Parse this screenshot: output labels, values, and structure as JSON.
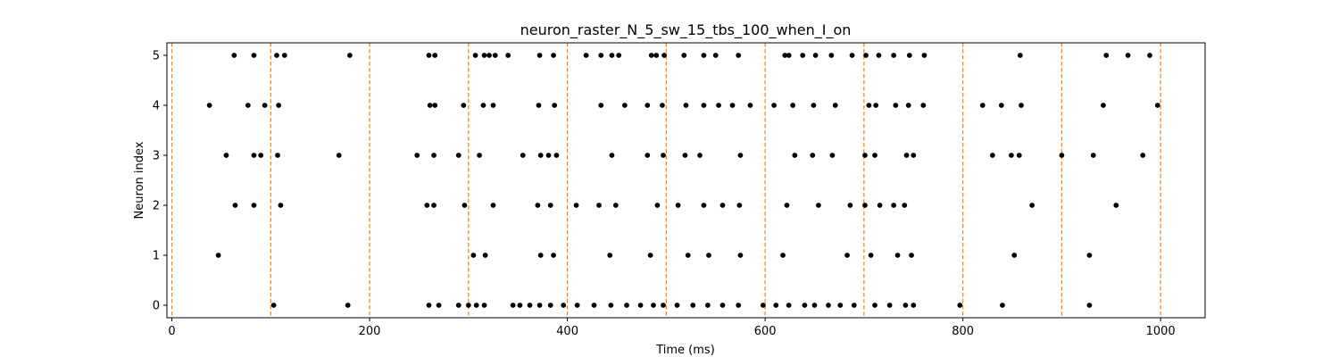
{
  "chart_data": {
    "type": "scatter",
    "title": "neuron_raster_N_5_sw_15_tbs_100_when_I_on",
    "xlabel": "Time (ms)",
    "ylabel": "Neuron index",
    "xlim": [
      -5,
      1045
    ],
    "ylim": [
      -0.25,
      5.25
    ],
    "xticks": [
      0,
      200,
      400,
      600,
      800,
      1000
    ],
    "yticks": [
      0,
      1,
      2,
      3,
      4,
      5
    ],
    "grid": false,
    "legend": "none",
    "marker_color": "#000000",
    "vline_color": "#ff7f0e",
    "vlines": [
      0,
      100,
      200,
      300,
      400,
      500,
      600,
      700,
      800,
      900,
      1000
    ],
    "spikes": [
      {
        "neuron": 5,
        "times": [
          63,
          83,
          106,
          114,
          180,
          260,
          266,
          307,
          316,
          321,
          327,
          340,
          372,
          386,
          419,
          434,
          445,
          452,
          485,
          490,
          498,
          518,
          538,
          550,
          573,
          620,
          624,
          638,
          651,
          667,
          688,
          702,
          715,
          730,
          746,
          761,
          858,
          945,
          967,
          989
        ]
      },
      {
        "neuron": 4,
        "times": [
          38,
          77,
          94,
          108,
          261,
          266,
          295,
          315,
          325,
          371,
          387,
          434,
          458,
          481,
          496,
          520,
          538,
          553,
          567,
          585,
          609,
          628,
          649,
          671,
          705,
          712,
          732,
          745,
          760,
          820,
          839,
          859,
          942,
          997
        ]
      },
      {
        "neuron": 3,
        "times": [
          55,
          83,
          90,
          107,
          169,
          248,
          265,
          290,
          311,
          355,
          373,
          381,
          389,
          445,
          481,
          497,
          519,
          534,
          575,
          630,
          648,
          668,
          701,
          711,
          743,
          750,
          830,
          849,
          857,
          900,
          932,
          982
        ]
      },
      {
        "neuron": 2,
        "times": [
          64,
          83,
          110,
          258,
          265,
          296,
          325,
          370,
          383,
          409,
          432,
          449,
          491,
          512,
          538,
          557,
          574,
          622,
          654,
          686,
          701,
          716,
          730,
          741,
          870,
          955
        ]
      },
      {
        "neuron": 1,
        "times": [
          47,
          305,
          317,
          373,
          386,
          443,
          484,
          522,
          543,
          575,
          618,
          683,
          707,
          734,
          748,
          852,
          928
        ]
      },
      {
        "neuron": 0,
        "times": [
          103,
          178,
          260,
          270,
          290,
          300,
          308,
          316,
          345,
          352,
          362,
          372,
          383,
          396,
          410,
          427,
          444,
          460,
          474,
          487,
          497,
          511,
          527,
          542,
          557,
          573,
          598,
          611,
          624,
          640,
          650,
          664,
          676,
          690,
          711,
          726,
          742,
          750,
          797,
          840,
          928
        ]
      }
    ]
  }
}
